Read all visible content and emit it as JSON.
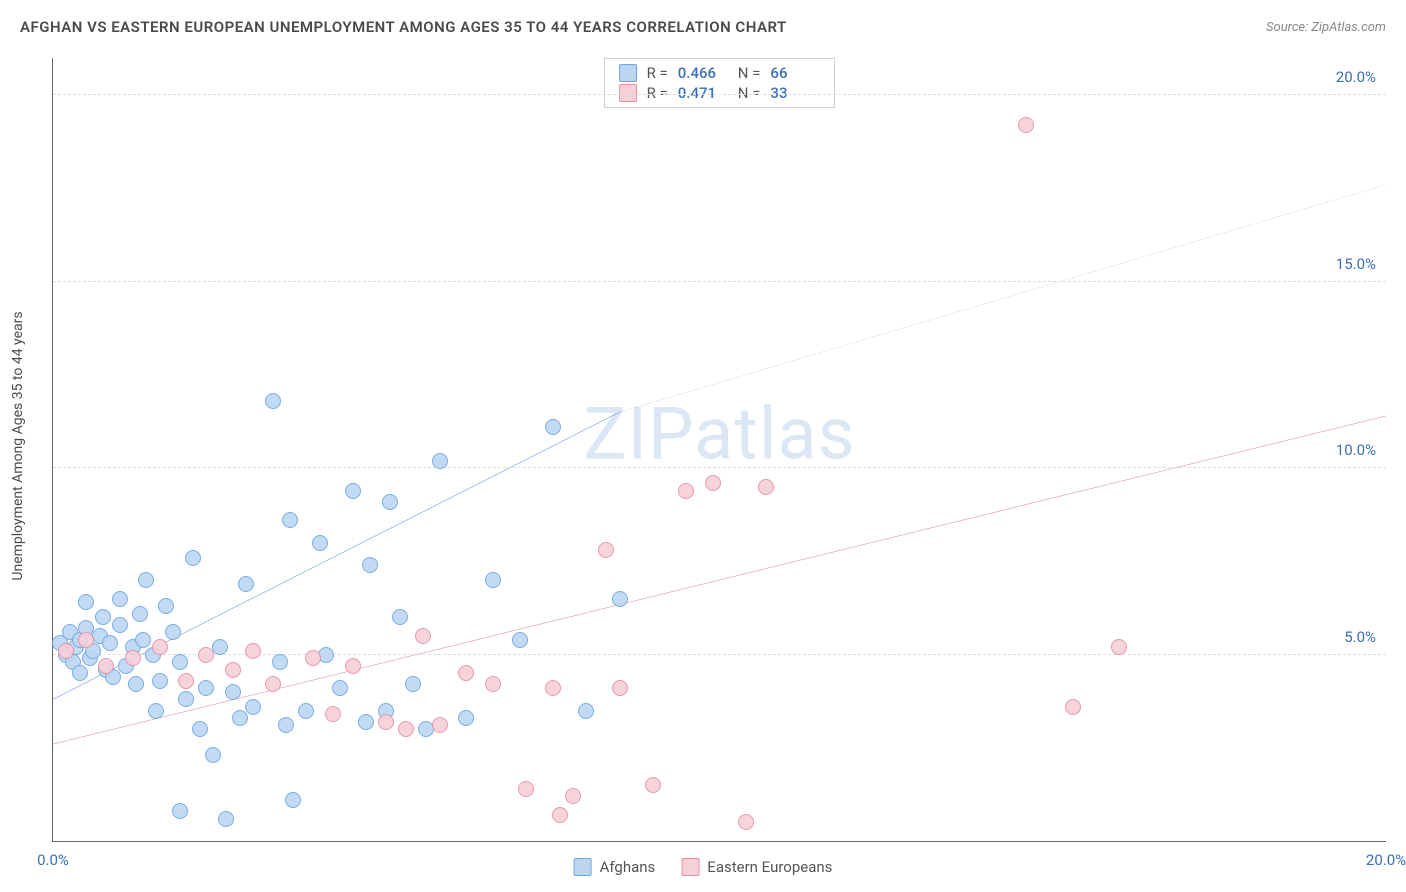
{
  "title": "AFGHAN VS EASTERN EUROPEAN UNEMPLOYMENT AMONG AGES 35 TO 44 YEARS CORRELATION CHART",
  "source": "Source: ZipAtlas.com",
  "ylabel": "Unemployment Among Ages 35 to 44 years",
  "watermark": "ZIPatlas",
  "chart": {
    "type": "scatter",
    "xlim": [
      0,
      20
    ],
    "ylim": [
      0,
      21
    ],
    "yticks": [
      {
        "v": 5,
        "label": "5.0%"
      },
      {
        "v": 10,
        "label": "10.0%"
      },
      {
        "v": 15,
        "label": "15.0%"
      },
      {
        "v": 20,
        "label": "20.0%"
      }
    ],
    "xticks": [
      {
        "v": 0,
        "label": "0.0%"
      },
      {
        "v": 20,
        "label": "20.0%"
      }
    ],
    "tick_color": "#3b6fb6",
    "grid_color": "#dddddd",
    "background_color": "#ffffff"
  },
  "series": [
    {
      "name": "Afghans",
      "fill": "#bcd6f2",
      "stroke": "#6ea5e0",
      "trend_color": "#2e6bd0",
      "trend_solid": {
        "x1": 0,
        "y1": 3.8,
        "x2": 8.5,
        "y2": 11.5
      },
      "trend_dashed": {
        "x1": 8.5,
        "y1": 11.5,
        "x2": 20,
        "y2": 17.6
      },
      "R": "0.466",
      "N": "66",
      "points": [
        [
          0.1,
          5.3
        ],
        [
          0.2,
          5.0
        ],
        [
          0.25,
          5.6
        ],
        [
          0.3,
          4.8
        ],
        [
          0.35,
          5.2
        ],
        [
          0.4,
          4.5
        ],
        [
          0.4,
          5.4
        ],
        [
          0.5,
          5.7
        ],
        [
          0.5,
          6.4
        ],
        [
          0.55,
          4.9
        ],
        [
          0.6,
          5.1
        ],
        [
          0.7,
          5.5
        ],
        [
          0.75,
          6.0
        ],
        [
          0.8,
          4.6
        ],
        [
          0.85,
          5.3
        ],
        [
          0.9,
          4.4
        ],
        [
          1.0,
          5.8
        ],
        [
          1.0,
          6.5
        ],
        [
          1.1,
          4.7
        ],
        [
          1.2,
          5.2
        ],
        [
          1.25,
          4.2
        ],
        [
          1.3,
          6.1
        ],
        [
          1.35,
          5.4
        ],
        [
          1.4,
          7.0
        ],
        [
          1.5,
          5.0
        ],
        [
          1.55,
          3.5
        ],
        [
          1.6,
          4.3
        ],
        [
          1.7,
          6.3
        ],
        [
          1.8,
          5.6
        ],
        [
          1.9,
          0.8
        ],
        [
          1.9,
          4.8
        ],
        [
          2.0,
          3.8
        ],
        [
          2.1,
          7.6
        ],
        [
          2.2,
          3.0
        ],
        [
          2.3,
          4.1
        ],
        [
          2.4,
          2.3
        ],
        [
          2.5,
          5.2
        ],
        [
          2.6,
          0.6
        ],
        [
          2.7,
          4.0
        ],
        [
          2.8,
          3.3
        ],
        [
          2.9,
          6.9
        ],
        [
          3.0,
          3.6
        ],
        [
          3.3,
          11.8
        ],
        [
          3.4,
          4.8
        ],
        [
          3.5,
          3.1
        ],
        [
          3.55,
          8.6
        ],
        [
          3.6,
          1.1
        ],
        [
          3.8,
          3.5
        ],
        [
          4.0,
          8.0
        ],
        [
          4.1,
          5.0
        ],
        [
          4.3,
          4.1
        ],
        [
          4.5,
          9.4
        ],
        [
          4.7,
          3.2
        ],
        [
          4.75,
          7.4
        ],
        [
          5.0,
          3.5
        ],
        [
          5.05,
          9.1
        ],
        [
          5.2,
          6.0
        ],
        [
          5.4,
          4.2
        ],
        [
          5.6,
          3.0
        ],
        [
          5.8,
          10.2
        ],
        [
          6.2,
          3.3
        ],
        [
          6.6,
          7.0
        ],
        [
          7.0,
          5.4
        ],
        [
          7.5,
          11.1
        ],
        [
          8.0,
          3.5
        ],
        [
          8.5,
          6.5
        ]
      ]
    },
    {
      "name": "Eastern Europeans",
      "fill": "#f7cfd9",
      "stroke": "#e590a5",
      "trend_color": "#e76a8a",
      "trend_solid": {
        "x1": 0,
        "y1": 2.6,
        "x2": 20,
        "y2": 11.4
      },
      "trend_dashed": null,
      "R": "0.471",
      "N": "33",
      "points": [
        [
          0.2,
          5.1
        ],
        [
          0.5,
          5.4
        ],
        [
          0.8,
          4.7
        ],
        [
          1.2,
          4.9
        ],
        [
          1.6,
          5.2
        ],
        [
          2.0,
          4.3
        ],
        [
          2.3,
          5.0
        ],
        [
          2.7,
          4.6
        ],
        [
          3.0,
          5.1
        ],
        [
          3.3,
          4.2
        ],
        [
          3.9,
          4.9
        ],
        [
          4.2,
          3.4
        ],
        [
          4.5,
          4.7
        ],
        [
          5.0,
          3.2
        ],
        [
          5.3,
          3.0
        ],
        [
          5.55,
          5.5
        ],
        [
          5.8,
          3.1
        ],
        [
          6.2,
          4.5
        ],
        [
          6.6,
          4.2
        ],
        [
          7.1,
          1.4
        ],
        [
          7.5,
          4.1
        ],
        [
          7.6,
          0.7
        ],
        [
          7.8,
          1.2
        ],
        [
          8.3,
          7.8
        ],
        [
          8.5,
          4.1
        ],
        [
          9.0,
          1.5
        ],
        [
          9.5,
          9.4
        ],
        [
          9.9,
          9.6
        ],
        [
          10.4,
          0.5
        ],
        [
          10.7,
          9.5
        ],
        [
          14.6,
          19.2
        ],
        [
          15.3,
          3.6
        ],
        [
          16.0,
          5.2
        ]
      ]
    }
  ],
  "stats_legend_labels": {
    "R": "R =",
    "N": "N ="
  },
  "bottom_legend": [
    "Afghans",
    "Eastern Europeans"
  ]
}
